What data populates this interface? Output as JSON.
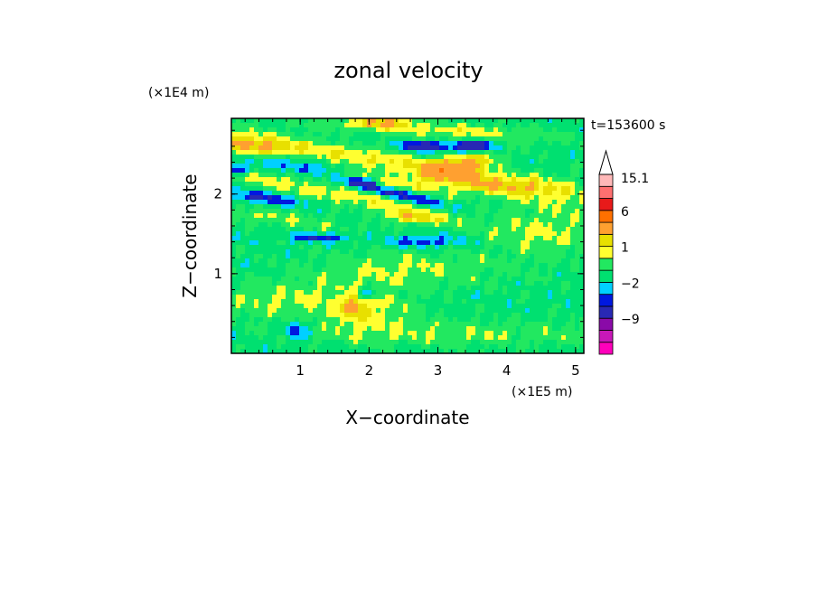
{
  "chart_data": {
    "type": "heatmap",
    "title": "zonal velocity",
    "xlabel": "X−coordinate",
    "ylabel": "Z−coordinate",
    "x_scale_label": "(×1E5 m)",
    "y_scale_label": "(×1E4 m)",
    "time_label": "t=153600 s",
    "xlim": [
      0,
      5.12
    ],
    "ylim": [
      0,
      2.95
    ],
    "x_ticks": [
      1,
      2,
      3,
      4,
      5
    ],
    "x_tick_labels": [
      "1",
      "2",
      "3",
      "4",
      "5"
    ],
    "y_ticks": [
      1,
      2
    ],
    "y_tick_labels": [
      "1",
      "2"
    ],
    "colorbar": {
      "levels": [
        -15.1,
        -12,
        -9,
        -6,
        -3,
        -2,
        -1,
        0,
        1,
        2,
        3,
        6,
        9,
        12,
        15.1
      ],
      "tick_labels": [
        {
          "value": 15.1,
          "label": "15.1"
        },
        {
          "value": 6,
          "label": "6"
        },
        {
          "value": 1,
          "label": "1"
        },
        {
          "value": -2,
          "label": "−2"
        },
        {
          "value": -9,
          "label": "−9"
        }
      ],
      "colors": [
        "#ff00bb",
        "#c818b8",
        "#8a0aa8",
        "#2828b4",
        "#0018e0",
        "#00d0ff",
        "#00e070",
        "#22e860",
        "#ffff30",
        "#e8e000",
        "#ffa030",
        "#ff7000",
        "#e81a1a",
        "#ff7070",
        "#ffb8b8"
      ],
      "extend": "max"
    },
    "background_value": -0.5,
    "features": [
      {
        "x": 2.3,
        "y": 2.4,
        "sx": 1.9,
        "sy": 0.09,
        "value": 2.5,
        "slope": -0.16
      },
      {
        "x": 1.5,
        "y": 2.0,
        "sx": 1.6,
        "sy": 0.08,
        "value": 2.2,
        "slope": -0.18
      },
      {
        "x": 3.0,
        "y": 2.8,
        "sx": 1.3,
        "sy": 0.07,
        "value": 2.0,
        "slope": -0.05
      },
      {
        "x": 0.6,
        "y": 1.7,
        "sx": 0.8,
        "sy": 0.07,
        "value": 1.6,
        "slope": -0.1
      },
      {
        "x": 3.8,
        "y": 2.1,
        "sx": 0.9,
        "sy": 0.1,
        "value": 2.0,
        "slope": 0.0
      },
      {
        "x": 4.6,
        "y": 1.6,
        "sx": 0.6,
        "sy": 0.3,
        "value": 1.5,
        "slope": 0.0
      },
      {
        "x": 3.3,
        "y": 2.35,
        "sx": 0.35,
        "sy": 0.1,
        "value": 4.5,
        "slope": 0.15
      },
      {
        "x": 0.3,
        "y": 2.6,
        "sx": 0.4,
        "sy": 0.08,
        "value": 3.5,
        "slope": -0.1
      },
      {
        "x": 2.2,
        "y": 2.9,
        "sx": 0.3,
        "sy": 0.05,
        "value": 3.0,
        "slope": 0.0
      },
      {
        "x": 1.9,
        "y": 2.2,
        "sx": 0.5,
        "sy": 0.05,
        "value": 3.0,
        "slope": -0.15
      },
      {
        "x": 2.6,
        "y": 1.7,
        "sx": 0.25,
        "sy": 0.05,
        "value": 3.0,
        "slope": -0.1
      },
      {
        "x": 1.2,
        "y": 2.3,
        "sx": 0.6,
        "sy": 0.05,
        "value": -2.5,
        "slope": -0.15
      },
      {
        "x": 2.4,
        "y": 2.0,
        "sx": 0.5,
        "sy": 0.05,
        "value": -3.2,
        "slope": -0.2
      },
      {
        "x": 0.5,
        "y": 1.95,
        "sx": 0.4,
        "sy": 0.05,
        "value": -2.5,
        "slope": -0.1
      },
      {
        "x": 2.8,
        "y": 2.6,
        "sx": 0.2,
        "sy": 0.04,
        "value": -5.0,
        "slope": 0.0
      },
      {
        "x": 3.5,
        "y": 2.6,
        "sx": 0.2,
        "sy": 0.05,
        "value": -5.0,
        "slope": 0.05
      },
      {
        "x": 1.9,
        "y": 2.15,
        "sx": 0.15,
        "sy": 0.04,
        "value": -4.5,
        "slope": 0.0
      },
      {
        "x": 1.3,
        "y": 1.45,
        "sx": 0.3,
        "sy": 0.04,
        "value": -2.5,
        "slope": 0.0
      },
      {
        "x": 0.05,
        "y": 2.3,
        "sx": 0.15,
        "sy": 0.04,
        "value": -4.0,
        "slope": 0.0
      },
      {
        "x": 2.8,
        "y": 1.4,
        "sx": 0.4,
        "sy": 0.05,
        "value": -2.2,
        "slope": 0.0
      },
      {
        "x": 2.5,
        "y": 1.05,
        "sx": 1.0,
        "sy": 0.18,
        "value": 1.6,
        "slope": 0.0
      },
      {
        "x": 0.7,
        "y": 0.65,
        "sx": 0.8,
        "sy": 0.18,
        "value": 1.5,
        "slope": 0.0
      },
      {
        "x": 3.5,
        "y": 0.25,
        "sx": 1.6,
        "sy": 0.12,
        "value": 1.3,
        "slope": 0.0
      },
      {
        "x": 2.0,
        "y": 0.5,
        "sx": 0.5,
        "sy": 0.2,
        "value": 1.5,
        "slope": 0.0
      },
      {
        "x": 1.8,
        "y": 0.6,
        "sx": 0.12,
        "sy": 0.1,
        "value": 2.5,
        "slope": 0.0
      },
      {
        "x": 0.95,
        "y": 0.3,
        "sx": 0.12,
        "sy": 0.08,
        "value": -2.5,
        "slope": 0.0
      },
      {
        "x": 1.95,
        "y": 0.75,
        "sx": 0.1,
        "sy": 0.06,
        "value": -2.5,
        "slope": 0.0
      }
    ]
  }
}
